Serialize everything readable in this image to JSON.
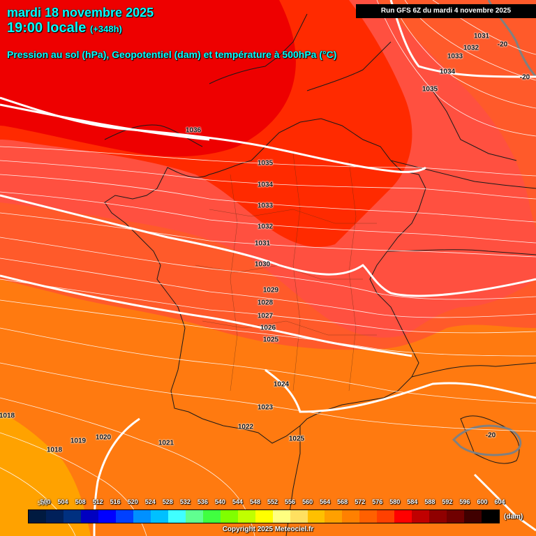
{
  "header": {
    "date_line": "mardi 18 novembre 2025",
    "time_line": "19:00 locale",
    "lead_time": "(+348h)",
    "parameter": "Pression au sol (hPa), Geopotentiel (dam) et température à 500hPa (°C)",
    "run_info": "Run GFS 6Z du mardi 4 novembre 2025"
  },
  "map": {
    "isobar_labels": [
      "1036",
      "1035",
      "1034",
      "1033",
      "1032",
      "1031",
      "1030",
      "1029",
      "1028",
      "1027",
      "1026",
      "1025",
      "1024",
      "1023",
      "1022",
      "1021",
      "1020",
      "1019",
      "1018",
      "1018",
      "1025",
      "1031",
      "1032",
      "1033",
      "1034",
      "1035"
    ],
    "temperature_labels": [
      "-20",
      "-20",
      "-20"
    ],
    "colors": {
      "geop_564": "#ffa200",
      "geop_568": "#ff7a10",
      "geop_572": "#ff5a2a",
      "geop_576": "#ff5040",
      "geop_580": "#ff2a00",
      "geop_584": "#ee0000",
      "isobar": "#ffffff",
      "border": "#1a1a1a",
      "isotherm": "#808080"
    }
  },
  "legend": {
    "labels": [
      "500",
      "504",
      "508",
      "512",
      "516",
      "520",
      "524",
      "528",
      "532",
      "536",
      "540",
      "544",
      "548",
      "552",
      "556",
      "560",
      "564",
      "568",
      "572",
      "576",
      "580",
      "584",
      "588",
      "592",
      "596",
      "600",
      "604"
    ],
    "colors": [
      "#001a40",
      "#00205a",
      "#003080",
      "#0000c0",
      "#0000ff",
      "#0040ff",
      "#0090ff",
      "#00c0ff",
      "#40ffff",
      "#60ff90",
      "#40ff40",
      "#80ff00",
      "#c0ff00",
      "#ffff00",
      "#ffff80",
      "#ffe060",
      "#ffc000",
      "#ffa000",
      "#ff8000",
      "#ff6000",
      "#ff4000",
      "#ff0000",
      "#c00000",
      "#900000",
      "#700000",
      "#400000",
      "#000000"
    ],
    "unit": "(dam)",
    "first_extra": "500"
  },
  "footer": {
    "copyright": "Copyright 2025 Meteociel.fr"
  }
}
